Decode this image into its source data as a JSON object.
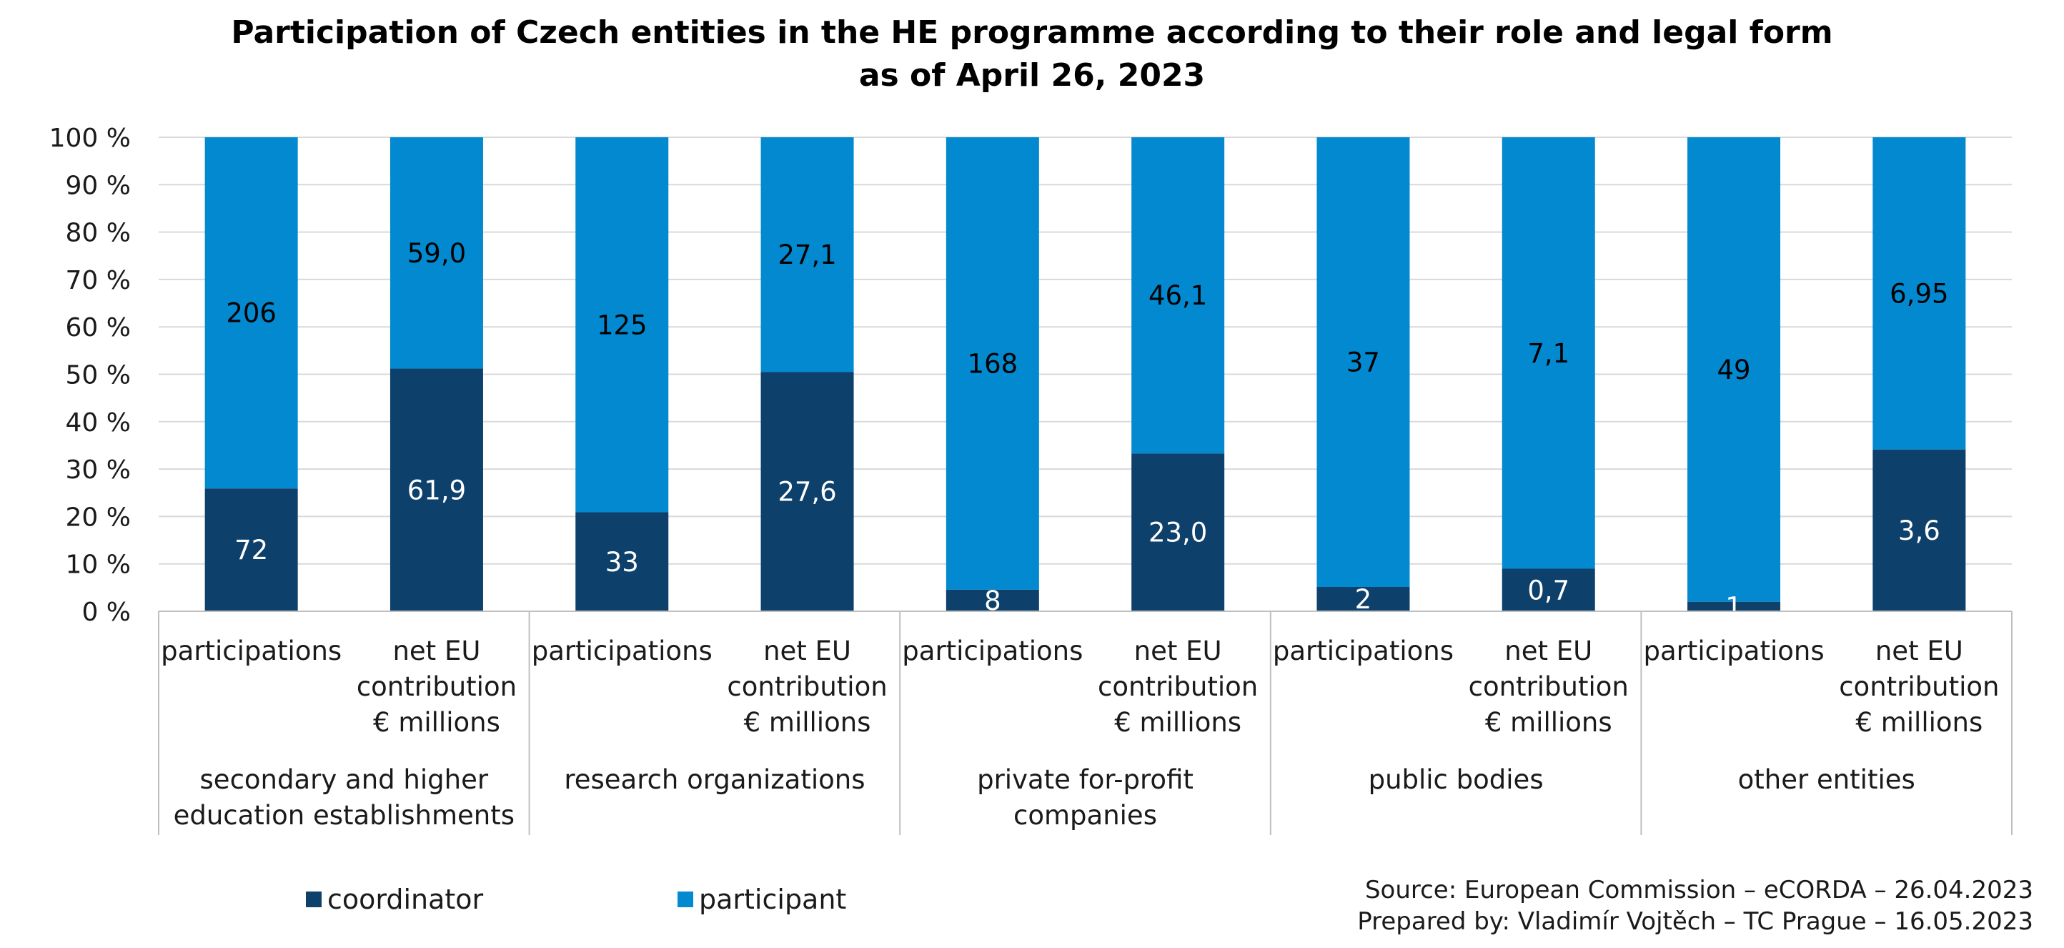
{
  "chart_data": {
    "type": "bar",
    "stacked": true,
    "normalized": "percent",
    "title": "Participation of Czech entities in the HE programme according to their role and legal form",
    "subtitle": "as of April 26, 2023",
    "ylabel": "",
    "xlabel": "",
    "ylim": [
      0,
      100
    ],
    "yticks": [
      "0 %",
      "10 %",
      "20 %",
      "30 %",
      "40 %",
      "50 %",
      "60 %",
      "70 %",
      "80 %",
      "90 %",
      "100 %"
    ],
    "grid": true,
    "legend_position": "bottom-left",
    "groups": [
      {
        "label_lines": [
          "secondary and higher",
          "education establishments"
        ],
        "bars": [
          {
            "label_lines": [
              "participations"
            ],
            "coordinator_label": "72",
            "participant_label": "206",
            "coordinator": 72,
            "participant": 206
          },
          {
            "label_lines": [
              "net EU",
              "contribution",
              "€ millions"
            ],
            "coordinator_label": "61,9",
            "participant_label": "59,0",
            "coordinator": 61.9,
            "participant": 59.0
          }
        ]
      },
      {
        "label_lines": [
          "research organizations"
        ],
        "bars": [
          {
            "label_lines": [
              "participations"
            ],
            "coordinator_label": "33",
            "participant_label": "125",
            "coordinator": 33,
            "participant": 125
          },
          {
            "label_lines": [
              "net EU",
              "contribution",
              "€ millions"
            ],
            "coordinator_label": "27,6",
            "participant_label": "27,1",
            "coordinator": 27.6,
            "participant": 27.1
          }
        ]
      },
      {
        "label_lines": [
          "private for-profit",
          "companies"
        ],
        "bars": [
          {
            "label_lines": [
              "participations"
            ],
            "coordinator_label": "8",
            "participant_label": "168",
            "coordinator": 8,
            "participant": 168
          },
          {
            "label_lines": [
              "net EU",
              "contribution",
              "€ millions"
            ],
            "coordinator_label": "23,0",
            "participant_label": "46,1",
            "coordinator": 23.0,
            "participant": 46.1
          }
        ]
      },
      {
        "label_lines": [
          "public bodies"
        ],
        "bars": [
          {
            "label_lines": [
              "participations"
            ],
            "coordinator_label": "2",
            "participant_label": "37",
            "coordinator": 2,
            "participant": 37
          },
          {
            "label_lines": [
              "net EU",
              "contribution",
              "€ millions"
            ],
            "coordinator_label": "0,7",
            "participant_label": "7,1",
            "coordinator": 0.7,
            "participant": 7.1
          }
        ]
      },
      {
        "label_lines": [
          "other entities"
        ],
        "bars": [
          {
            "label_lines": [
              "participations"
            ],
            "coordinator_label": "1",
            "participant_label": "49",
            "coordinator": 1,
            "participant": 49
          },
          {
            "label_lines": [
              "net EU",
              "contribution",
              "€ millions"
            ],
            "coordinator_label": "3,6",
            "participant_label": "6,95",
            "coordinator": 3.6,
            "participant": 6.95
          }
        ]
      }
    ],
    "series": [
      {
        "key": "coordinator",
        "name": "coordinator",
        "color": "#0e406c",
        "label_color": "#ffffff"
      },
      {
        "key": "participant",
        "name": "participant",
        "color": "#0289d0",
        "label_color": "#000000"
      }
    ],
    "source_lines": [
      "Source: European Commission – eCORDA – 26.04.2023",
      "Prepared by: Vladimír Vojtěch – TC Prague – 16.05.2023"
    ]
  },
  "colors": {
    "grid": "#d9d9d9",
    "axis": "#bfbfbf",
    "text": "#1a1a1a"
  }
}
